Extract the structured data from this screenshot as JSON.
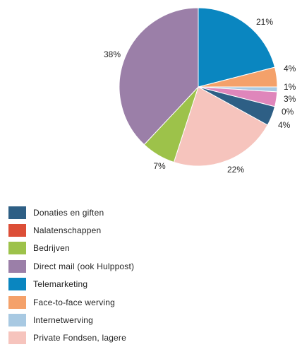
{
  "chart_data": {
    "type": "pie",
    "title": "",
    "slices": [
      {
        "label": "Telemarketing",
        "value": 21,
        "value_label": "21%",
        "color": "#0a86c0"
      },
      {
        "label": "Face-to-face werving",
        "value": 4,
        "value_label": "4%",
        "color": "#f4a16a"
      },
      {
        "label": "Internetwerving",
        "value": 1,
        "value_label": "1%",
        "color": "#a8c9e2"
      },
      {
        "label": "",
        "value": 3,
        "value_label": "3%",
        "color": "#df86bb"
      },
      {
        "label": "",
        "value": 0,
        "value_label": "0%",
        "color": "#d9d9d9"
      },
      {
        "label": "Donaties en giften",
        "value": 4,
        "value_label": "4%",
        "color": "#2e5f85"
      },
      {
        "label": "Private Fondsen, lagere",
        "value": 22,
        "value_label": "22%",
        "color": "#f6c4bd"
      },
      {
        "label": "Bedrijven",
        "value": 7,
        "value_label": "7%",
        "color": "#9dc24a"
      },
      {
        "label": "Direct mail (ook Hulppost)",
        "value": 38,
        "value_label": "38%",
        "color": "#9b7fa8"
      }
    ]
  },
  "legend": {
    "items": [
      {
        "label": "Donaties en giften",
        "color": "#2e5f85"
      },
      {
        "label": "Nalatenschappen",
        "color": "#dc4e37"
      },
      {
        "label": "Bedrijven",
        "color": "#9dc24a"
      },
      {
        "label": "Direct mail (ook Hulppost)",
        "color": "#9b7fa8"
      },
      {
        "label": "Telemarketing",
        "color": "#0a86c0"
      },
      {
        "label": "Face-to-face werving",
        "color": "#f4a16a"
      },
      {
        "label": "Internetwerving",
        "color": "#a8c9e2"
      },
      {
        "label": "Private Fondsen, lagere",
        "color": "#f6c4bd"
      }
    ]
  }
}
